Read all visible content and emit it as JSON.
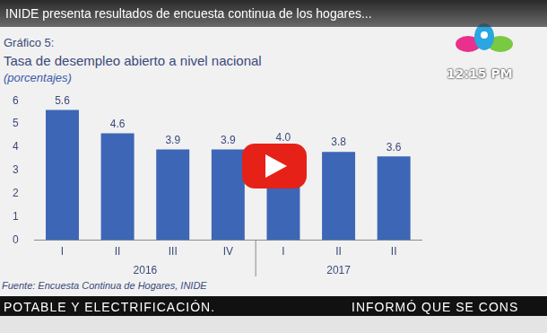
{
  "video": {
    "title": "INIDE presenta resultados de encuesta continua de los hogares...",
    "clock": "12:15 PM",
    "ticker": [
      "POTABLE Y ELECTRIFICACIÓN.",
      "INFORMÓ QUE SE CONS"
    ]
  },
  "chart_data": {
    "type": "bar",
    "title": [
      "Gráfico 5:",
      "Tasa de desempleo abierto a nivel nacional"
    ],
    "subtitle": "(porcentajes)",
    "source": "Fuente: Encuesta Continua de Hogares, INIDE",
    "categories": [
      "I",
      "II",
      "III",
      "IV",
      "I",
      "II",
      "II"
    ],
    "groups": [
      {
        "label": "2016",
        "categories": [
          "I",
          "II",
          "III",
          "IV"
        ]
      },
      {
        "label": "2017",
        "categories": [
          "I",
          "II",
          "II"
        ]
      }
    ],
    "values": [
      5.6,
      4.6,
      3.9,
      3.9,
      4.0,
      3.8,
      3.6
    ],
    "value_labels": [
      "5.6",
      "4.6",
      "3.9",
      "3.9",
      "4.0",
      "3.8",
      "3.6"
    ],
    "data_labels": true,
    "color": "#3d66b6",
    "ylim": [
      0,
      6
    ],
    "yticks": [
      0,
      1,
      2,
      3,
      4,
      5,
      6
    ],
    "grid": false
  }
}
